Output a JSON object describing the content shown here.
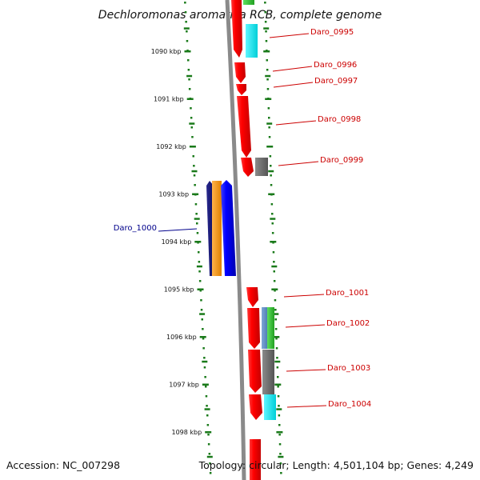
{
  "title": "Dechloromonas aromatica RCB, complete genome",
  "accession": "Accession: NC_007298",
  "topology": "Topology: circular; Length: 4,501,104 bp; Genes: 4,249",
  "colors": {
    "tick": "#1a7a1a",
    "backbone": "#8a8a8a",
    "label_forward": "#cc0000",
    "label_reverse": "#00008b"
  },
  "ticks": [
    {
      "label": "1090 kbp"
    },
    {
      "label": "1091 kbp"
    },
    {
      "label": "1092 kbp"
    },
    {
      "label": "1093 kbp"
    },
    {
      "label": "1094 kbp"
    },
    {
      "label": "1095 kbp"
    },
    {
      "label": "1096 kbp"
    },
    {
      "label": "1097 kbp"
    },
    {
      "label": "1098 kbp"
    }
  ],
  "gene_labels": [
    {
      "text": "Daro_0995"
    },
    {
      "text": "Daro_0996"
    },
    {
      "text": "Daro_0997"
    },
    {
      "text": "Daro_0998"
    },
    {
      "text": "Daro_0999"
    },
    {
      "text": "Daro_1000"
    },
    {
      "text": "Daro_1001"
    },
    {
      "text": "Daro_1002"
    },
    {
      "text": "Daro_1003"
    },
    {
      "text": "Daro_1004"
    }
  ]
}
